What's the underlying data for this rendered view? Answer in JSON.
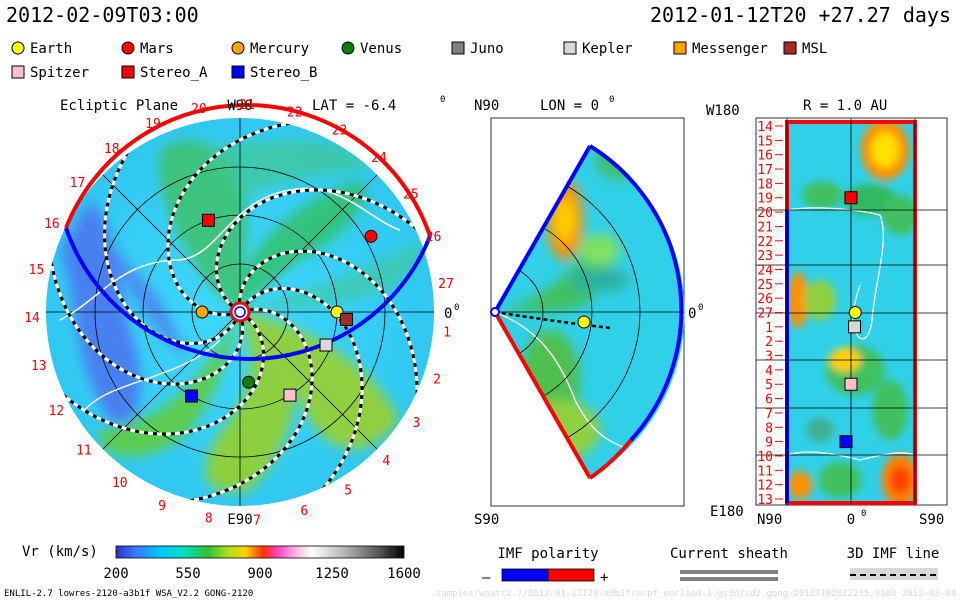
{
  "header": {
    "model_time": "2012-02-09T03:00",
    "run_info": "2012-01-12T20 +27.27 days"
  },
  "legend": {
    "markers": [
      {
        "label": "Earth",
        "color": "#ffff00",
        "shape": "circle"
      },
      {
        "label": "Mars",
        "color": "#ff0000",
        "shape": "circle"
      },
      {
        "label": "Mercury",
        "color": "#ffa500",
        "shape": "circle"
      },
      {
        "label": "Venus",
        "color": "#008000",
        "shape": "circle"
      },
      {
        "label": "Juno",
        "color": "#808080",
        "shape": "square"
      },
      {
        "label": "Kepler",
        "color": "#d8d8d8",
        "shape": "square"
      },
      {
        "label": "Messenger",
        "color": "#ffa500",
        "shape": "square"
      },
      {
        "label": "MSL",
        "color": "#a52a2a",
        "shape": "square"
      },
      {
        "label": "Spitzer",
        "color": "#ffc0cb",
        "shape": "square"
      },
      {
        "label": "Stereo_A",
        "color": "#ff0000",
        "shape": "square"
      },
      {
        "label": "Stereo_B",
        "color": "#0000ff",
        "shape": "square"
      }
    ]
  },
  "panels": {
    "ecliptic": {
      "title": "Ecliptic Plane",
      "top_label": "W90",
      "bottom_label": "E90",
      "right_label": "0",
      "lat_label": "LAT = -6.4",
      "degree": "0"
    },
    "meridional": {
      "top_label": "N90",
      "bottom_label": "S90",
      "lon_label": "LON = 0",
      "right_label": "0",
      "degree": "0"
    },
    "synoptic": {
      "top_label": "W180",
      "bottom_label": "E180",
      "r_label": "R = 1.0 AU",
      "x_left": "N90",
      "x_mid": "0",
      "x_right": "S90",
      "degree": "0"
    }
  },
  "colorbar": {
    "label": "Vr (km/s)",
    "ticks": [
      "200",
      "550",
      "900",
      "1250",
      "1600"
    ]
  },
  "imf_polarity": {
    "label": "IMF polarity",
    "minus": "–",
    "plus": "+"
  },
  "current_sheath": {
    "label": "Current sheath"
  },
  "imf_line": {
    "label": "3D IMF line"
  },
  "footer": {
    "left": "ENLIL-2.7 lowres-2120-a3b1f WSA_V2.2 GONG-2120",
    "right": "samples/wsatr2.7/2012-01-12T20-a3b1f/mcpf_enrlied-1.gs3d/sd2.gong-2012T1020Z2235,0100 2012-02-04"
  },
  "chart_data": [
    {
      "type": "polar_map",
      "name": "Ecliptic Plane",
      "quantity": "Vr (km/s)",
      "carrington_ticks": [
        "1",
        "2",
        "3",
        "4",
        "5",
        "6",
        "7",
        "8",
        "9",
        "10",
        "11",
        "12",
        "13",
        "14",
        "15",
        "16",
        "17",
        "18",
        "19",
        "20",
        "21",
        "22",
        "23",
        "24",
        "25",
        "26",
        "27"
      ],
      "objects": [
        {
          "name": "Earth",
          "r_au": 1.0,
          "lon_deg": 0
        },
        {
          "name": "Mars",
          "r_au": 1.56,
          "lon_deg": 30
        },
        {
          "name": "Mercury",
          "r_au": 0.39,
          "lon_deg": 180
        },
        {
          "name": "Venus",
          "r_au": 0.73,
          "lon_deg": -83
        },
        {
          "name": "Kepler",
          "r_au": 0.95,
          "lon_deg": -21
        },
        {
          "name": "MSL",
          "r_au": 1.1,
          "lon_deg": -4
        },
        {
          "name": "Spitzer",
          "r_au": 1.0,
          "lon_deg": -59
        },
        {
          "name": "Stereo_A",
          "r_au": 1.0,
          "lon_deg": 109
        },
        {
          "name": "Stereo_B",
          "r_au": 1.0,
          "lon_deg": -120
        }
      ]
    },
    {
      "type": "polar_map",
      "name": "Meridional Plane",
      "quantity": "Vr (km/s)",
      "objects": [
        {
          "name": "Earth",
          "r_au": 1.0,
          "lat_deg": -6
        }
      ]
    },
    {
      "type": "heatmap",
      "name": "Synoptic map at R = 1.0 AU",
      "quantity": "Vr (km/s)",
      "y_ticks": [
        "14",
        "15",
        "16",
        "17",
        "18",
        "19",
        "20",
        "21",
        "22",
        "23",
        "24",
        "25",
        "26",
        "27",
        "1",
        "2",
        "3",
        "4",
        "5",
        "6",
        "7",
        "8",
        "9",
        "10",
        "11",
        "12",
        "13"
      ],
      "x_ticks": [
        "N90",
        "0",
        "S90"
      ],
      "objects": [
        {
          "name": "Stereo_A",
          "carrington": 19,
          "lat_deg": 0
        },
        {
          "name": "Earth",
          "carrington": 27,
          "lat_deg": -6
        },
        {
          "name": "Kepler",
          "carrington": 1,
          "lat_deg": -5
        },
        {
          "name": "Spitzer",
          "carrington": 5,
          "lat_deg": 0
        },
        {
          "name": "Stereo_B",
          "carrington": 9,
          "lat_deg": 7
        }
      ]
    }
  ]
}
